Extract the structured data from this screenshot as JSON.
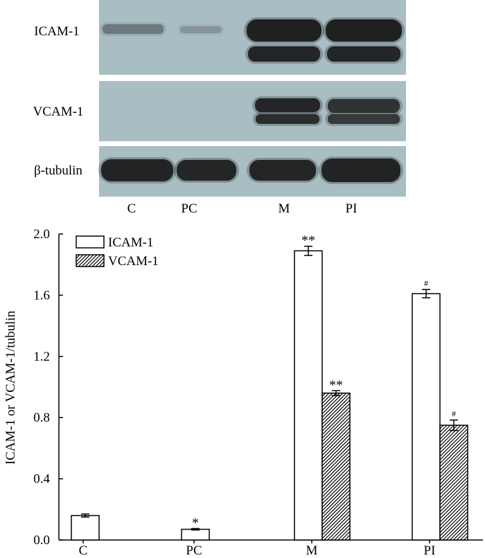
{
  "blot": {
    "rows": [
      {
        "label": "ICAM-1"
      },
      {
        "label": "VCAM-1"
      },
      {
        "label": "β-tubulin"
      }
    ],
    "lanes": [
      "C",
      "PC",
      "M",
      "PI"
    ],
    "panel_color": "#a9bec3",
    "band_color": "#1a1a1a"
  },
  "chart_data": {
    "type": "bar",
    "categories": [
      "C",
      "PC",
      "M",
      "PI"
    ],
    "series": [
      {
        "name": "ICAM-1",
        "fill": "hollow",
        "values": [
          0.16,
          0.07,
          1.89,
          1.61
        ],
        "errors": [
          0.01,
          0.005,
          0.03,
          0.027
        ]
      },
      {
        "name": "VCAM-1",
        "fill": "hatched",
        "values": [
          0,
          0,
          0.96,
          0.75
        ],
        "errors": [
          0,
          0,
          0.016,
          0.034
        ]
      }
    ],
    "xlabel": "",
    "ylabel": "ICAM-1 or VCAM-1/tubulin",
    "ylim": [
      0,
      2.0
    ],
    "yticks": [
      0,
      0.4,
      0.8,
      1.2,
      1.6,
      2.0
    ],
    "ytick_labels": [
      "0.0",
      "0.4",
      "0.8",
      "1.2",
      "1.6",
      "2.0"
    ],
    "legend": "top-left",
    "grid": false,
    "annotations": [
      {
        "category": "PC",
        "series": "ICAM-1",
        "text": "*"
      },
      {
        "category": "M",
        "series": "ICAM-1",
        "text": "**"
      },
      {
        "category": "M",
        "series": "VCAM-1",
        "text": "**"
      },
      {
        "category": "PI",
        "series": "ICAM-1",
        "text": "#"
      },
      {
        "category": "PI",
        "series": "VCAM-1",
        "text": "#"
      }
    ]
  }
}
